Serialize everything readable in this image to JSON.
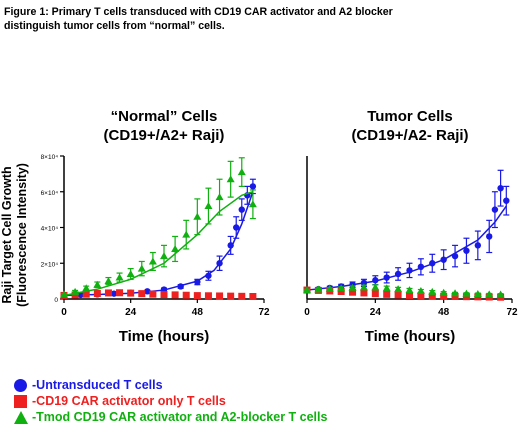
{
  "caption": {
    "line1": "Figure 1: Primary T cells transduced with CD19 CAR activator and A2 blocker",
    "line2": "distinguish tumor cells from “normal” cells."
  },
  "ylabel_line1": "Raji Target Cell Growth",
  "ylabel_line2": "(Fluorescence Intensity)",
  "legend": [
    {
      "label": "-Untransduced T cells",
      "color": "#1a1ae6",
      "shape": "circle"
    },
    {
      "label": "-CD19 CAR activator only T cells",
      "color": "#ee2020",
      "shape": "square"
    },
    {
      "label": "-Tmod CD19 CAR activator and A2-blocker T cells",
      "color": "#10b010",
      "shape": "triangle"
    }
  ],
  "chart_data": [
    {
      "type": "scatter",
      "title_line1": "“Normal” Cells",
      "title_line2": "(CD19+/A2+ Raji)",
      "xlabel": "Time (hours)",
      "xlim": [
        0,
        72
      ],
      "ylim": [
        0,
        80000
      ],
      "xticks": [
        "0",
        "24",
        "48",
        "72"
      ],
      "yticks": [
        {
          "v": 0,
          "t": "0"
        },
        {
          "v": 20000,
          "t": "2×10⁴"
        },
        {
          "v": 40000,
          "t": "4×10⁴"
        },
        {
          "v": 60000,
          "t": "6×10⁴"
        },
        {
          "v": 80000,
          "t": "8×10⁴"
        }
      ],
      "series": [
        {
          "color": "#1a1ae6",
          "marker": "circle",
          "x": [
            0,
            6,
            12,
            18,
            24,
            30,
            36,
            42,
            48,
            52,
            56,
            60,
            62,
            64,
            66,
            68
          ],
          "y": [
            2000,
            2300,
            2600,
            3000,
            3500,
            4300,
            5300,
            7000,
            9500,
            13000,
            20000,
            30000,
            40000,
            50000,
            58000,
            63000
          ],
          "err": [
            300,
            300,
            400,
            400,
            500,
            600,
            800,
            1000,
            1500,
            2500,
            4000,
            5000,
            6000,
            6000,
            5000,
            4000
          ],
          "fit_x": [
            0,
            12,
            24,
            36,
            48,
            54,
            60,
            64,
            68
          ],
          "fit_y": [
            2000,
            2500,
            3200,
            5000,
            10000,
            16000,
            28000,
            42000,
            60000
          ]
        },
        {
          "color": "#ee2020",
          "marker": "square",
          "x": [
            0,
            4,
            8,
            12,
            16,
            20,
            24,
            28,
            32,
            36,
            40,
            44,
            48,
            52,
            56,
            60,
            64,
            68
          ],
          "y": [
            2000,
            2300,
            2700,
            3100,
            3400,
            3500,
            3300,
            3000,
            2700,
            2500,
            2300,
            2100,
            1900,
            1800,
            1700,
            1600,
            1500,
            1400
          ],
          "err": [],
          "fit_x": [],
          "fit_y": []
        },
        {
          "color": "#10b010",
          "marker": "triangle",
          "x": [
            0,
            4,
            8,
            12,
            16,
            20,
            24,
            28,
            32,
            36,
            40,
            44,
            48,
            52,
            56,
            60,
            64,
            68
          ],
          "y": [
            2500,
            4000,
            6000,
            8000,
            10000,
            12000,
            14000,
            17000,
            21000,
            24000,
            28000,
            36000,
            46000,
            52000,
            57000,
            67000,
            71000,
            53000
          ],
          "err": [
            500,
            800,
            1200,
            1500,
            2000,
            2500,
            3000,
            4000,
            5000,
            6000,
            7000,
            8000,
            10000,
            10000,
            10000,
            10000,
            8000,
            8000
          ],
          "fit_x": [
            0,
            12,
            24,
            36,
            48,
            56,
            64,
            68
          ],
          "fit_y": [
            2000,
            5500,
            11000,
            20000,
            36000,
            49000,
            58000,
            60000
          ]
        }
      ]
    },
    {
      "type": "scatter",
      "title_line1": "Tumor Cells",
      "title_line2": "(CD19+/A2- Raji)",
      "xlabel": "Time (hours)",
      "xlim": [
        0,
        72
      ],
      "ylim": [
        0,
        80000
      ],
      "xticks": [
        "0",
        "24",
        "48",
        "72"
      ],
      "yticks": [],
      "series": [
        {
          "color": "#1a1ae6",
          "marker": "circle",
          "x": [
            0,
            4,
            8,
            12,
            16,
            20,
            24,
            28,
            32,
            36,
            40,
            44,
            48,
            52,
            56,
            60,
            64,
            66,
            68,
            70
          ],
          "y": [
            5000,
            5500,
            6200,
            7000,
            8000,
            9000,
            10500,
            12000,
            14000,
            16000,
            18000,
            20000,
            22000,
            24000,
            27000,
            30000,
            35000,
            50000,
            62000,
            55000
          ],
          "err": [
            500,
            700,
            900,
            1200,
            1500,
            2000,
            2500,
            3000,
            3500,
            4000,
            4500,
            5000,
            5500,
            6000,
            7000,
            8000,
            9000,
            10000,
            10000,
            8000
          ],
          "fit_x": [
            0,
            12,
            24,
            36,
            48,
            60,
            66,
            70
          ],
          "fit_y": [
            5000,
            7000,
            10000,
            15000,
            22000,
            33000,
            43000,
            52000
          ]
        },
        {
          "color": "#ee2020",
          "marker": "square",
          "x": [
            0,
            4,
            8,
            12,
            16,
            20,
            24,
            28,
            32,
            36,
            40,
            44,
            48,
            52,
            56,
            60,
            64,
            68
          ],
          "y": [
            5000,
            4800,
            4500,
            4200,
            3800,
            3400,
            3000,
            2600,
            2300,
            2000,
            1800,
            1600,
            1500,
            1400,
            1300,
            1200,
            1100,
            1000
          ],
          "err": [],
          "fit_x": [],
          "fit_y": []
        },
        {
          "color": "#10b010",
          "marker": "triangle",
          "x": [
            0,
            4,
            8,
            12,
            16,
            20,
            24,
            28,
            32,
            36,
            40,
            44,
            48,
            52,
            56,
            60,
            64,
            68
          ],
          "y": [
            5000,
            5300,
            5700,
            6000,
            6300,
            6500,
            6500,
            6000,
            5500,
            5000,
            4500,
            4000,
            3500,
            3200,
            3000,
            2800,
            2600,
            2500
          ],
          "err": [
            400,
            500,
            600,
            800,
            1000,
            1200,
            1400,
            1200,
            1000,
            900,
            800,
            700,
            600,
            500,
            500,
            500,
            500,
            500
          ],
          "fit_x": [],
          "fit_y": []
        }
      ]
    }
  ]
}
